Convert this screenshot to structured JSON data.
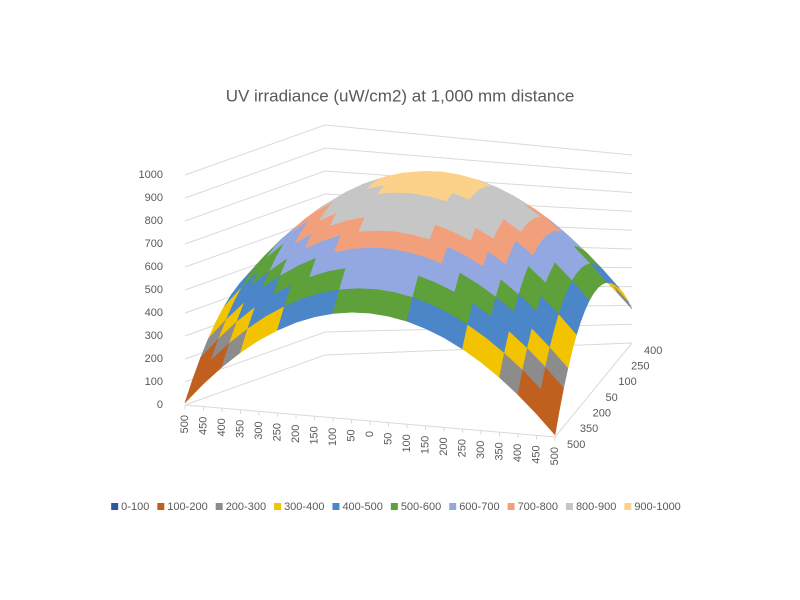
{
  "chart_data": {
    "type": "surface",
    "title": "UV irradiance (uW/cm2) at 1,000 mm distance",
    "categories": [
      "500",
      "450",
      "400",
      "350",
      "300",
      "250",
      "200",
      "150",
      "100",
      "50",
      "0",
      "50",
      "100",
      "150",
      "200",
      "250",
      "300",
      "350",
      "400",
      "450",
      "500"
    ],
    "series": [
      {
        "name": "400",
        "values": [
          181,
          271,
          352,
          423,
          485,
          537,
          580,
          613,
          637,
          651,
          656,
          651,
          637,
          613,
          580,
          537,
          485,
          423,
          352,
          271,
          181
        ]
      },
      {
        "name": null,
        "values": [
          252,
          342,
          423,
          494,
          556,
          608,
          651,
          684,
          708,
          722,
          727,
          722,
          708,
          684,
          651,
          608,
          556,
          494,
          423,
          342,
          252
        ]
      },
      {
        "name": null,
        "values": [
          314,
          404,
          485,
          556,
          618,
          670,
          713,
          746,
          770,
          784,
          789,
          784,
          770,
          746,
          713,
          670,
          618,
          556,
          485,
          404,
          314
        ]
      },
      {
        "name": "250",
        "values": [
          366,
          456,
          537,
          608,
          670,
          722,
          765,
          798,
          822,
          836,
          841,
          836,
          822,
          798,
          765,
          722,
          670,
          608,
          537,
          456,
          366
        ]
      },
      {
        "name": null,
        "values": [
          409,
          499,
          580,
          651,
          713,
          765,
          808,
          841,
          865,
          879,
          884,
          879,
          865,
          841,
          808,
          765,
          713,
          651,
          580,
          499,
          409
        ]
      },
      {
        "name": null,
        "values": [
          442,
          532,
          613,
          684,
          746,
          798,
          841,
          874,
          898,
          912,
          917,
          912,
          898,
          874,
          841,
          798,
          746,
          684,
          613,
          532,
          442
        ]
      },
      {
        "name": "100",
        "values": [
          466,
          556,
          637,
          708,
          770,
          822,
          865,
          898,
          922,
          936,
          941,
          936,
          922,
          898,
          865,
          822,
          770,
          708,
          637,
          556,
          466
        ]
      },
      {
        "name": null,
        "values": [
          480,
          570,
          651,
          722,
          784,
          836,
          879,
          912,
          936,
          950,
          955,
          950,
          936,
          912,
          879,
          836,
          784,
          722,
          651,
          570,
          480
        ]
      },
      {
        "name": null,
        "values": [
          485,
          575,
          656,
          727,
          789,
          841,
          884,
          917,
          941,
          955,
          960,
          955,
          941,
          917,
          884,
          841,
          789,
          727,
          656,
          575,
          485
        ]
      },
      {
        "name": "50",
        "values": [
          480,
          570,
          651,
          722,
          784,
          836,
          879,
          912,
          936,
          950,
          955,
          950,
          936,
          912,
          879,
          836,
          784,
          722,
          651,
          570,
          480
        ]
      },
      {
        "name": null,
        "values": [
          466,
          556,
          637,
          708,
          770,
          822,
          865,
          898,
          922,
          936,
          941,
          936,
          922,
          898,
          865,
          822,
          770,
          708,
          637,
          556,
          466
        ]
      },
      {
        "name": null,
        "values": [
          442,
          532,
          613,
          684,
          746,
          798,
          841,
          874,
          898,
          912,
          917,
          912,
          898,
          874,
          841,
          798,
          746,
          684,
          613,
          532,
          442
        ]
      },
      {
        "name": "200",
        "values": [
          409,
          499,
          580,
          651,
          713,
          765,
          808,
          841,
          865,
          879,
          884,
          879,
          865,
          841,
          808,
          765,
          713,
          651,
          580,
          499,
          409
        ]
      },
      {
        "name": null,
        "values": [
          366,
          456,
          537,
          608,
          670,
          722,
          765,
          798,
          822,
          836,
          841,
          836,
          822,
          798,
          765,
          722,
          670,
          608,
          537,
          456,
          366
        ]
      },
      {
        "name": null,
        "values": [
          314,
          404,
          485,
          556,
          618,
          670,
          713,
          746,
          770,
          784,
          789,
          784,
          770,
          746,
          713,
          670,
          618,
          556,
          485,
          404,
          314
        ]
      },
      {
        "name": "350",
        "values": [
          252,
          342,
          423,
          494,
          556,
          608,
          651,
          684,
          708,
          722,
          727,
          722,
          708,
          684,
          651,
          608,
          556,
          494,
          423,
          342,
          252
        ]
      },
      {
        "name": null,
        "values": [
          181,
          271,
          352,
          423,
          485,
          537,
          580,
          613,
          637,
          651,
          656,
          651,
          637,
          613,
          580,
          537,
          485,
          423,
          352,
          271,
          181
        ]
      },
      {
        "name": null,
        "values": [
          100,
          190,
          271,
          342,
          404,
          456,
          499,
          532,
          556,
          570,
          575,
          570,
          556,
          532,
          499,
          456,
          404,
          342,
          271,
          190,
          100
        ]
      },
      {
        "name": "500",
        "values": [
          10,
          100,
          181,
          252,
          314,
          366,
          409,
          442,
          466,
          480,
          485,
          480,
          466,
          442,
          409,
          366,
          314,
          252,
          181,
          100,
          10
        ]
      }
    ],
    "zlim": [
      0,
      1000
    ],
    "zticks": [
      0,
      100,
      200,
      300,
      400,
      500,
      600,
      700,
      800,
      900,
      1000
    ],
    "legend": [
      {
        "name": "0-100",
        "color": "#2f55a4"
      },
      {
        "name": "100-200",
        "color": "#c0601f"
      },
      {
        "name": "200-300",
        "color": "#8c8c8c"
      },
      {
        "name": "300-400",
        "color": "#f2c300"
      },
      {
        "name": "400-500",
        "color": "#4a86c8"
      },
      {
        "name": "500-600",
        "color": "#5ea03a"
      },
      {
        "name": "600-700",
        "color": "#93a8e0"
      },
      {
        "name": "700-800",
        "color": "#f2a07b"
      },
      {
        "name": "800-900",
        "color": "#c6c6c6"
      },
      {
        "name": "900-1000",
        "color": "#fcd28a"
      }
    ],
    "grid": true
  }
}
